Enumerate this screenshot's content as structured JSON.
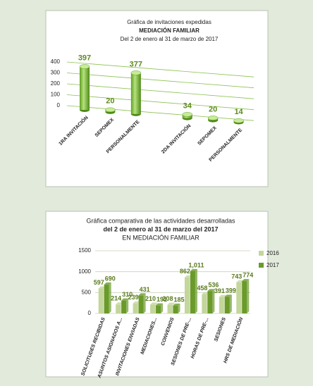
{
  "chart_data": [
    {
      "type": "cylinder3d",
      "title": "Gráfica de invitaciones expedidas",
      "subtitle": "MEDIACIÓN FAMILIAR",
      "subtitle2": "Del  2 de enero al  31 de marzo de 2017",
      "categories": [
        "1RA INVITACIÓN",
        "SEPOMEX",
        "PERSONALMENTE",
        null,
        "2DA INVITACIÓN",
        "SEPOMEX",
        "PERSONALMENTE"
      ],
      "values": [
        397,
        20,
        377,
        null,
        34,
        20,
        14
      ],
      "color": "#7dc242",
      "ylim": [
        0,
        400
      ],
      "yticks": [
        0,
        100,
        200,
        300,
        400
      ],
      "grid": true
    },
    {
      "type": "bar3d",
      "title": "Gráfica comparativa de las actividades desarrolladas",
      "subtitle": "del  2 de enero al  31 de  marzo  del 2017",
      "subtitle2": "EN MEDIACIÓN FAMILIAR",
      "categories": [
        "SOLICITUDES RECIBIDAS",
        "ASUNTOS ASIGNADOS A...",
        "INVITACIONES ENVIADAS",
        "MEDIACIONES...",
        "CONVENIOS",
        "SESIONES DE PRE-...",
        "HORAS DE PRE-...",
        "SESIONES",
        "HRS DE MEDIACIÓN"
      ],
      "series": [
        {
          "name": "2016",
          "color": "#c3d69b",
          "values": [
            597,
            214,
            239,
            210,
            208,
            862,
            458,
            391,
            743
          ],
          "value_labels": [
            "597",
            "214",
            "239",
            "210",
            "208",
            "862",
            "458",
            "391",
            "743"
          ]
        },
        {
          "name": "2017",
          "color": "#6a9a2a",
          "values": [
            690,
            310,
            431,
            191,
            185,
            1011,
            536,
            399,
            774
          ],
          "value_labels": [
            "690",
            "310",
            "431",
            "191",
            "185",
            "1,011",
            "536",
            "399",
            "774"
          ]
        }
      ],
      "ylim": [
        0,
        1500
      ],
      "yticks": [
        0,
        500,
        1000,
        1500
      ],
      "grid": true,
      "legend": "right"
    }
  ]
}
